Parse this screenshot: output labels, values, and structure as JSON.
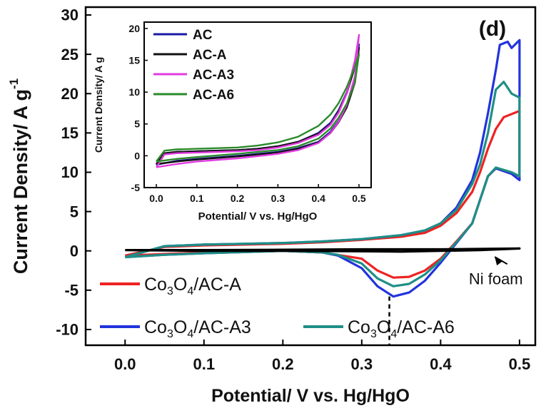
{
  "chart_data": [
    {
      "type": "line",
      "panel_label": "(d)",
      "xlabel": "Potential/ V vs. Hg/HgO",
      "ylabel_main": "Current Density/ A g",
      "ylabel_sup": "-1",
      "xlim": [
        -0.05,
        0.52
      ],
      "ylim": [
        -12,
        31
      ],
      "xticks": [
        "0.0",
        "0.1",
        "0.2",
        "0.3",
        "0.4",
        "0.5"
      ],
      "xtick_values": [
        0.0,
        0.1,
        0.2,
        0.3,
        0.4,
        0.5
      ],
      "yticks": [
        "-10",
        "-5",
        "0",
        "5",
        "10",
        "15",
        "20",
        "25",
        "30"
      ],
      "ytick_values": [
        -10,
        -5,
        0,
        5,
        10,
        15,
        20,
        25,
        30
      ],
      "legend_placement": "bottom",
      "series": [
        {
          "name_parts": [
            "Co",
            "3",
            "O",
            "4",
            "/AC-A"
          ],
          "color": "#ee2222",
          "forward": [
            [
              0.0,
              -0.6
            ],
            [
              0.05,
              0.5
            ],
            [
              0.1,
              0.7
            ],
            [
              0.15,
              0.8
            ],
            [
              0.2,
              0.9
            ],
            [
              0.25,
              1.1
            ],
            [
              0.3,
              1.4
            ],
            [
              0.35,
              1.8
            ],
            [
              0.38,
              2.3
            ],
            [
              0.4,
              3.2
            ],
            [
              0.42,
              4.8
            ],
            [
              0.44,
              7.5
            ],
            [
              0.45,
              10
            ],
            [
              0.46,
              13
            ],
            [
              0.47,
              15.5
            ],
            [
              0.48,
              17
            ],
            [
              0.5,
              17.8
            ]
          ],
          "reverse": [
            [
              0.5,
              17.8
            ],
            [
              0.5,
              9.5
            ],
            [
              0.49,
              9.8
            ],
            [
              0.47,
              10.5
            ],
            [
              0.46,
              9.5
            ],
            [
              0.45,
              6.5
            ],
            [
              0.44,
              3.5
            ],
            [
              0.42,
              1.2
            ],
            [
              0.4,
              -1
            ],
            [
              0.38,
              -2.5
            ],
            [
              0.36,
              -3.3
            ],
            [
              0.34,
              -3.4
            ],
            [
              0.32,
              -2.5
            ],
            [
              0.3,
              -1
            ],
            [
              0.25,
              -0.2
            ],
            [
              0.2,
              0.0
            ],
            [
              0.1,
              -0.2
            ],
            [
              0.05,
              -0.4
            ],
            [
              0.0,
              -0.6
            ]
          ]
        },
        {
          "name_parts": [
            "Co",
            "3",
            "O",
            "4",
            "/AC-A3"
          ],
          "color": "#2233dd",
          "forward": [
            [
              0.0,
              -0.8
            ],
            [
              0.05,
              0.6
            ],
            [
              0.1,
              0.8
            ],
            [
              0.15,
              0.9
            ],
            [
              0.2,
              1.0
            ],
            [
              0.25,
              1.2
            ],
            [
              0.3,
              1.5
            ],
            [
              0.35,
              2.0
            ],
            [
              0.38,
              2.6
            ],
            [
              0.4,
              3.5
            ],
            [
              0.42,
              5.5
            ],
            [
              0.44,
              9
            ],
            [
              0.45,
              12.5
            ],
            [
              0.46,
              17.5
            ],
            [
              0.47,
              23
            ],
            [
              0.475,
              26.2
            ],
            [
              0.485,
              26.6
            ],
            [
              0.49,
              25.8
            ],
            [
              0.5,
              26.8
            ]
          ],
          "reverse": [
            [
              0.5,
              26.8
            ],
            [
              0.5,
              9
            ],
            [
              0.49,
              9.8
            ],
            [
              0.47,
              10.5
            ],
            [
              0.46,
              9.5
            ],
            [
              0.45,
              6.5
            ],
            [
              0.44,
              3.5
            ],
            [
              0.42,
              1.0
            ],
            [
              0.4,
              -1.5
            ],
            [
              0.38,
              -3.8
            ],
            [
              0.36,
              -5.3
            ],
            [
              0.34,
              -5.8
            ],
            [
              0.32,
              -4.5
            ],
            [
              0.3,
              -2.2
            ],
            [
              0.27,
              -0.6
            ],
            [
              0.25,
              -0.2
            ],
            [
              0.2,
              0.0
            ],
            [
              0.1,
              -0.3
            ],
            [
              0.05,
              -0.5
            ],
            [
              0.0,
              -0.8
            ]
          ]
        },
        {
          "name_parts": [
            "Co",
            "3",
            "O",
            "4",
            "/AC-A6"
          ],
          "color": "#1f8f85",
          "forward": [
            [
              0.0,
              -0.8
            ],
            [
              0.05,
              0.6
            ],
            [
              0.1,
              0.8
            ],
            [
              0.15,
              0.9
            ],
            [
              0.2,
              1.0
            ],
            [
              0.25,
              1.2
            ],
            [
              0.3,
              1.5
            ],
            [
              0.35,
              2.0
            ],
            [
              0.38,
              2.6
            ],
            [
              0.4,
              3.5
            ],
            [
              0.42,
              5.2
            ],
            [
              0.44,
              8.5
            ],
            [
              0.45,
              11
            ],
            [
              0.46,
              15
            ],
            [
              0.47,
              20.5
            ],
            [
              0.48,
              21.5
            ],
            [
              0.49,
              20
            ],
            [
              0.5,
              19.5
            ]
          ],
          "reverse": [
            [
              0.5,
              19.5
            ],
            [
              0.5,
              9.5
            ],
            [
              0.49,
              10
            ],
            [
              0.47,
              10.6
            ],
            [
              0.46,
              9.5
            ],
            [
              0.45,
              6.5
            ],
            [
              0.44,
              3.5
            ],
            [
              0.42,
              1.1
            ],
            [
              0.4,
              -1.2
            ],
            [
              0.38,
              -3.0
            ],
            [
              0.36,
              -4.2
            ],
            [
              0.34,
              -4.5
            ],
            [
              0.32,
              -3.5
            ],
            [
              0.3,
              -1.6
            ],
            [
              0.27,
              -0.5
            ],
            [
              0.25,
              -0.2
            ],
            [
              0.2,
              0.0
            ],
            [
              0.1,
              -0.3
            ],
            [
              0.05,
              -0.5
            ],
            [
              0.0,
              -0.8
            ]
          ]
        },
        {
          "name": "Ni foam",
          "color": "#000000",
          "forward": [
            [
              0.0,
              0.1
            ],
            [
              0.1,
              0.1
            ],
            [
              0.2,
              0.15
            ],
            [
              0.3,
              0.2
            ],
            [
              0.4,
              0.2
            ],
            [
              0.5,
              0.3
            ]
          ],
          "reverse": [
            [
              0.5,
              0.3
            ],
            [
              0.45,
              0.1
            ],
            [
              0.4,
              0.0
            ],
            [
              0.35,
              -0.1
            ],
            [
              0.3,
              -0.05
            ],
            [
              0.2,
              0.0
            ],
            [
              0.1,
              0.0
            ],
            [
              0.0,
              0.1
            ]
          ]
        }
      ],
      "annotations": [
        {
          "text": "Ni foam",
          "x": 0.47,
          "y": -3.5,
          "arrow_to": [
            0.465,
            -0.4
          ]
        },
        {
          "marker_x": 0.335,
          "from_y": -5.8,
          "to_y": -12,
          "style": "dashed"
        }
      ]
    },
    {
      "type": "line",
      "role": "inset",
      "xlabel": "Potential/ V vs. Hg/HgO",
      "ylabel": "Current Density/ A g",
      "xlim": [
        -0.03,
        0.53
      ],
      "ylim": [
        -5,
        21
      ],
      "xticks": [
        "0.0",
        "0.1",
        "0.2",
        "0.3",
        "0.4",
        "0.5"
      ],
      "xtick_values": [
        0.0,
        0.1,
        0.2,
        0.3,
        0.4,
        0.5
      ],
      "yticks": [
        "-5",
        "0",
        "5",
        "10",
        "15",
        "20"
      ],
      "ytick_values": [
        -5,
        0,
        5,
        10,
        15,
        20
      ],
      "legend_placement": "top-left",
      "series": [
        {
          "name": "AC",
          "color": "#1a1aa6",
          "forward": [
            [
              0.0,
              -1.4
            ],
            [
              0.02,
              0.4
            ],
            [
              0.05,
              0.6
            ],
            [
              0.1,
              0.7
            ],
            [
              0.15,
              0.8
            ],
            [
              0.2,
              0.9
            ],
            [
              0.25,
              1.1
            ],
            [
              0.3,
              1.5
            ],
            [
              0.35,
              2.2
            ],
            [
              0.4,
              3.6
            ],
            [
              0.43,
              5.2
            ],
            [
              0.45,
              7.2
            ],
            [
              0.47,
              10
            ],
            [
              0.49,
              14.5
            ],
            [
              0.5,
              17.5
            ]
          ],
          "reverse": [
            [
              0.5,
              17.5
            ],
            [
              0.49,
              12
            ],
            [
              0.47,
              8
            ],
            [
              0.45,
              5.5
            ],
            [
              0.43,
              3.8
            ],
            [
              0.4,
              2.2
            ],
            [
              0.35,
              1.2
            ],
            [
              0.3,
              0.6
            ],
            [
              0.2,
              0.0
            ],
            [
              0.1,
              -0.5
            ],
            [
              0.05,
              -0.8
            ],
            [
              0.0,
              -1.4
            ]
          ]
        },
        {
          "name": "AC-A",
          "color": "#111111",
          "forward": [
            [
              0.0,
              -1.3
            ],
            [
              0.02,
              0.4
            ],
            [
              0.05,
              0.6
            ],
            [
              0.1,
              0.7
            ],
            [
              0.15,
              0.8
            ],
            [
              0.2,
              0.9
            ],
            [
              0.25,
              1.1
            ],
            [
              0.3,
              1.5
            ],
            [
              0.35,
              2.2
            ],
            [
              0.4,
              3.5
            ],
            [
              0.43,
              5
            ],
            [
              0.45,
              7
            ],
            [
              0.47,
              9.8
            ],
            [
              0.49,
              14
            ],
            [
              0.5,
              17
            ]
          ],
          "reverse": [
            [
              0.5,
              17
            ],
            [
              0.49,
              11.5
            ],
            [
              0.47,
              7.6
            ],
            [
              0.45,
              5.3
            ],
            [
              0.43,
              3.6
            ],
            [
              0.4,
              2.1
            ],
            [
              0.35,
              1.1
            ],
            [
              0.3,
              0.5
            ],
            [
              0.2,
              -0.1
            ],
            [
              0.1,
              -0.6
            ],
            [
              0.05,
              -0.9
            ],
            [
              0.0,
              -1.3
            ]
          ]
        },
        {
          "name": "AC-A3",
          "color": "#e03ce0",
          "forward": [
            [
              0.0,
              -1.8
            ],
            [
              0.02,
              0.2
            ],
            [
              0.05,
              0.4
            ],
            [
              0.1,
              0.5
            ],
            [
              0.15,
              0.6
            ],
            [
              0.2,
              0.7
            ],
            [
              0.25,
              0.9
            ],
            [
              0.3,
              1.3
            ],
            [
              0.35,
              2.0
            ],
            [
              0.4,
              3.3
            ],
            [
              0.43,
              4.9
            ],
            [
              0.45,
              6.8
            ],
            [
              0.47,
              9.8
            ],
            [
              0.49,
              15
            ],
            [
              0.5,
              19
            ]
          ],
          "reverse": [
            [
              0.5,
              19
            ],
            [
              0.49,
              12.5
            ],
            [
              0.47,
              8
            ],
            [
              0.45,
              5.4
            ],
            [
              0.43,
              3.6
            ],
            [
              0.4,
              2.0
            ],
            [
              0.35,
              0.9
            ],
            [
              0.3,
              0.3
            ],
            [
              0.2,
              -0.4
            ],
            [
              0.1,
              -0.9
            ],
            [
              0.05,
              -1.3
            ],
            [
              0.0,
              -1.8
            ]
          ]
        },
        {
          "name": "AC-A6",
          "color": "#2a8a2a",
          "forward": [
            [
              0.0,
              -0.9
            ],
            [
              0.02,
              0.8
            ],
            [
              0.05,
              1.0
            ],
            [
              0.1,
              1.1
            ],
            [
              0.15,
              1.2
            ],
            [
              0.2,
              1.3
            ],
            [
              0.25,
              1.6
            ],
            [
              0.3,
              2.1
            ],
            [
              0.35,
              3.0
            ],
            [
              0.4,
              4.7
            ],
            [
              0.43,
              6.5
            ],
            [
              0.45,
              8.3
            ],
            [
              0.47,
              10.8
            ],
            [
              0.49,
              14
            ],
            [
              0.5,
              16
            ]
          ],
          "reverse": [
            [
              0.5,
              16
            ],
            [
              0.49,
              11.5
            ],
            [
              0.47,
              8.2
            ],
            [
              0.45,
              6
            ],
            [
              0.43,
              4.3
            ],
            [
              0.4,
              2.7
            ],
            [
              0.35,
              1.5
            ],
            [
              0.3,
              0.9
            ],
            [
              0.2,
              0.3
            ],
            [
              0.1,
              -0.2
            ],
            [
              0.05,
              -0.5
            ],
            [
              0.0,
              -0.9
            ]
          ]
        }
      ]
    }
  ]
}
